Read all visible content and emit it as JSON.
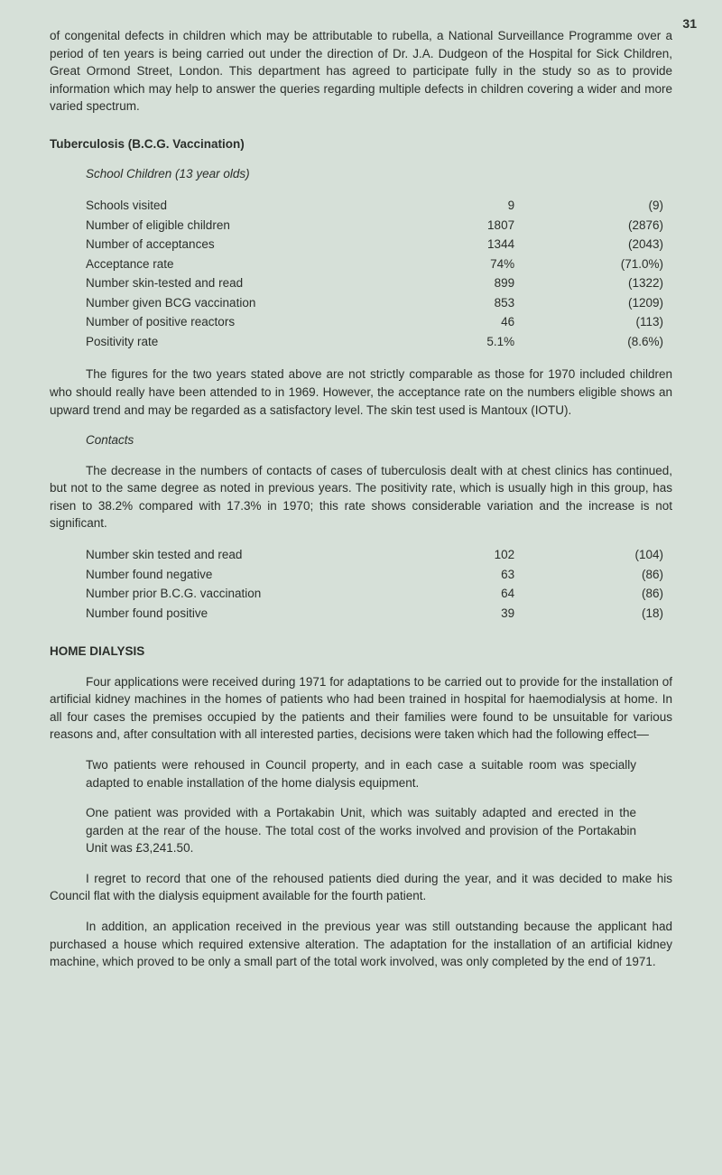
{
  "page_number": "31",
  "intro_para": "of congenital defects in children which may be attributable to rubella, a National Surveillance Programme over a period of ten years is being carried out under the direction of Dr. J.A. Dudgeon of the Hospital for Sick Children, Great Ormond Street, London. This department has agreed to participate fully in the study so as to provide information which may help to answer the queries regarding multiple defects in children covering a wider and more varied spectrum.",
  "tb_heading": "Tuberculosis (B.C.G. Vaccination)",
  "school_heading": "School Children (13 year olds)",
  "school_rows": [
    {
      "label": "Schools visited",
      "v1": "9",
      "v2": "(9)"
    },
    {
      "label": "Number of eligible children",
      "v1": "1807",
      "v2": "(2876)"
    },
    {
      "label": "Number of acceptances",
      "v1": "1344",
      "v2": "(2043)"
    },
    {
      "label": "Acceptance rate",
      "v1": "74%",
      "v2": "(71.0%)"
    },
    {
      "label": "Number skin-tested and read",
      "v1": "899",
      "v2": "(1322)"
    },
    {
      "label": "Number given BCG vaccination",
      "v1": "853",
      "v2": "(1209)"
    },
    {
      "label": "Number of positive reactors",
      "v1": "46",
      "v2": "(113)"
    },
    {
      "label": "Positivity rate",
      "v1": "5.1%",
      "v2": "(8.6%)"
    }
  ],
  "school_para": "The figures for the two years stated above are not strictly comparable as those for 1970 included children who should really have been attended to in 1969. However, the acceptance rate on the numbers eligible shows an upward trend and may be regarded as a satisfactory level. The skin test used is Mantoux (IOTU).",
  "contacts_heading": "Contacts",
  "contacts_para": "The decrease in the numbers of contacts of cases of tuberculosis dealt with at chest clinics has continued, but not to the same degree as noted in previous years. The positivity rate, which is usually high in this group, has risen to 38.2% compared with 17.3% in 1970; this rate shows considerable variation and the increase is not significant.",
  "contacts_rows": [
    {
      "label": "Number skin tested and read",
      "v1": "102",
      "v2": "(104)"
    },
    {
      "label": "Number found negative",
      "v1": "63",
      "v2": "(86)"
    },
    {
      "label": "Number prior B.C.G. vaccination",
      "v1": "64",
      "v2": "(86)"
    },
    {
      "label": "Number found positive",
      "v1": "39",
      "v2": "(18)"
    }
  ],
  "dialysis_heading": "HOME DIALYSIS",
  "dialysis_para1": "Four applications were received during 1971 for adaptations to be carried out to provide for the installation of artificial kidney machines in the homes of patients who had been trained in hospital for haemodialysis at home. In all four cases the premises occupied by the patients and their families were found to be unsuitable for various reasons and, after consultation with all interested parties, decisions were taken which had the following effect—",
  "dialysis_item1": "Two patients were rehoused in Council property, and in each case a suitable room was specially adapted to enable installation of the home dialysis equipment.",
  "dialysis_item2": "One patient was provided with a Portakabin Unit, which was suitably adapted and erected in the garden at the rear of the house. The total cost of the works involved and provision of the Portakabin Unit was £3,241.50.",
  "dialysis_para2": "I regret to record that one of the rehoused patients died during the year, and it was decided to make his Council flat with the dialysis equipment available for the fourth patient.",
  "dialysis_para3": "In addition, an application received in the previous year was still outstanding because the applicant had purchased a house which required extensive alteration. The adaptation for the installation of an artificial kidney machine, which proved to be only a small part of the total work involved, was only completed by the end of 1971."
}
